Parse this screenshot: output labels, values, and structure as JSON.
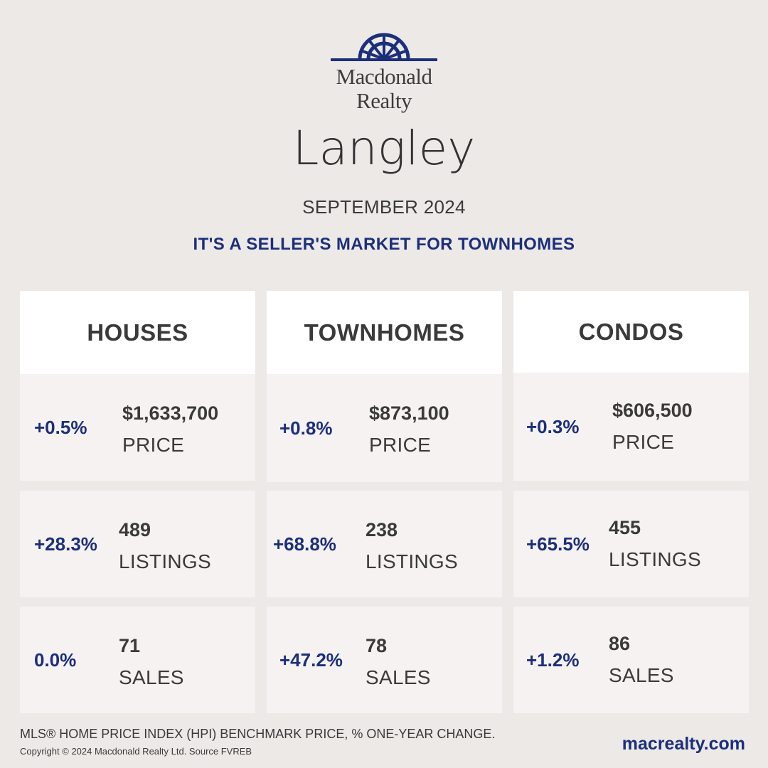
{
  "brand": {
    "line1": "Macdonald",
    "line2": "Realty",
    "logo_icon": "sunburst-arch-icon",
    "color": "#1c2f7a"
  },
  "city": "Langley",
  "period": "SEPTEMBER 2024",
  "headline": "IT'S A SELLER'S MARKET FOR TOWNHOMES",
  "columns": [
    {
      "title": "HOUSES",
      "price": {
        "change": "+0.5%",
        "value": "$1,633,700",
        "label": "PRICE"
      },
      "listings": {
        "change": "+28.3%",
        "value": "489",
        "label": "LISTINGS"
      },
      "sales": {
        "change": "0.0%",
        "value": "71",
        "label": "SALES"
      }
    },
    {
      "title": "TOWNHOMES",
      "price": {
        "change": "+0.8%",
        "value": "$873,100",
        "label": "PRICE"
      },
      "listings": {
        "change": "+68.8%",
        "value": "238",
        "label": "LISTINGS"
      },
      "sales": {
        "change": "+47.2%",
        "value": "78",
        "label": "SALES"
      }
    },
    {
      "title": "CONDOS",
      "price": {
        "change": "+0.3%",
        "value": "$606,500",
        "label": "PRICE"
      },
      "listings": {
        "change": "+65.5%",
        "value": "455",
        "label": "LISTINGS"
      },
      "sales": {
        "change": "+1.2%",
        "value": "86",
        "label": "SALES"
      }
    }
  ],
  "footer": {
    "note": "MLS® HOME PRICE INDEX (HPI) BENCHMARK PRICE, % ONE-YEAR CHANGE.",
    "copyright": "Copyright © 2024 Macdonald Realty Ltd. Source FVREB",
    "website": "macrealty.com"
  }
}
